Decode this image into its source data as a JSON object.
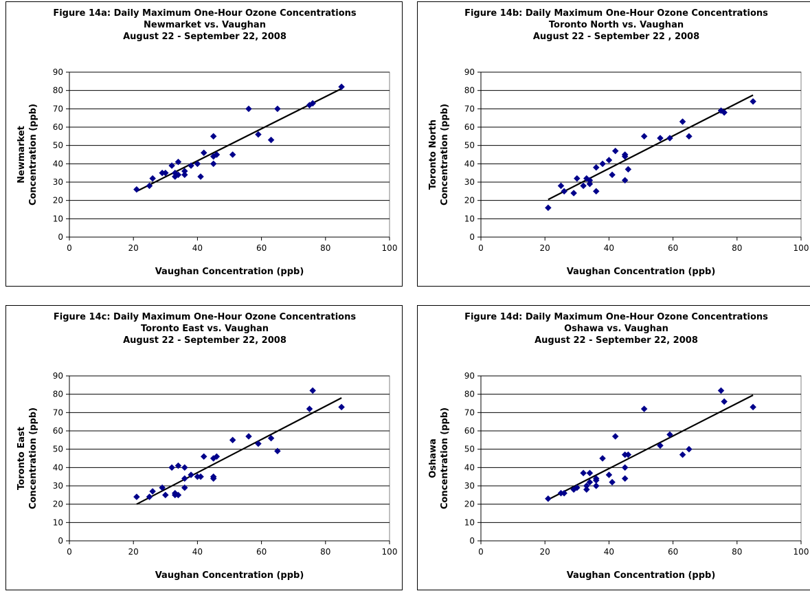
{
  "chart_data": [
    {
      "type": "scatter",
      "title": [
        "Figure 14a:  Daily Maximum One-Hour Ozone Concentrations",
        "Newmarket vs. Vaughan",
        "August 22 - September 22, 2008"
      ],
      "xlabel": "Vaughan Concentration (ppb)",
      "ylabel": [
        "Newmarket",
        "Concentration (ppb)"
      ],
      "xlim": [
        0,
        100
      ],
      "ylim": [
        0,
        90
      ],
      "xticks": [
        0,
        20,
        40,
        60,
        80,
        100
      ],
      "yticks": [
        0,
        10,
        20,
        30,
        40,
        50,
        60,
        70,
        80,
        90
      ],
      "grid": true,
      "marker_color": "#00008B",
      "trendline": {
        "from": [
          21,
          25
        ],
        "to": [
          85,
          81
        ]
      },
      "points": [
        [
          21,
          26
        ],
        [
          25,
          28
        ],
        [
          26,
          32
        ],
        [
          29,
          35
        ],
        [
          30,
          35
        ],
        [
          32,
          39
        ],
        [
          33,
          33
        ],
        [
          33,
          35
        ],
        [
          34,
          41
        ],
        [
          34,
          34
        ],
        [
          36,
          36
        ],
        [
          36,
          34
        ],
        [
          38,
          39
        ],
        [
          40,
          40
        ],
        [
          41,
          33
        ],
        [
          42,
          46
        ],
        [
          45,
          55
        ],
        [
          45,
          44
        ],
        [
          45,
          40
        ],
        [
          46,
          45
        ],
        [
          46,
          45
        ],
        [
          51,
          45
        ],
        [
          56,
          70
        ],
        [
          59,
          56
        ],
        [
          63,
          53
        ],
        [
          65,
          70
        ],
        [
          75,
          72
        ],
        [
          76,
          73
        ],
        [
          85,
          82
        ]
      ]
    },
    {
      "type": "scatter",
      "title": [
        "Figure 14b:  Daily Maximum One-Hour Ozone Concentrations",
        "Toronto North vs. Vaughan",
        "August 22 - September 22 , 2008"
      ],
      "xlabel": "Vaughan Concentration (ppb)",
      "ylabel": [
        "Toronto North",
        "Concentration (ppb)"
      ],
      "xlim": [
        0,
        100
      ],
      "ylim": [
        0,
        90
      ],
      "xticks": [
        0,
        20,
        40,
        60,
        80,
        100
      ],
      "yticks": [
        0,
        10,
        20,
        30,
        40,
        50,
        60,
        70,
        80,
        90
      ],
      "grid": true,
      "marker_color": "#00008B",
      "trendline": {
        "from": [
          21,
          20.5
        ],
        "to": [
          85,
          77.5
        ]
      },
      "points": [
        [
          21,
          16
        ],
        [
          25,
          28
        ],
        [
          26,
          25
        ],
        [
          29,
          24
        ],
        [
          30,
          32
        ],
        [
          32,
          28
        ],
        [
          33,
          32
        ],
        [
          34,
          29
        ],
        [
          34,
          31
        ],
        [
          36,
          38
        ],
        [
          36,
          25
        ],
        [
          38,
          40
        ],
        [
          40,
          42
        ],
        [
          41,
          34
        ],
        [
          42,
          47
        ],
        [
          45,
          44
        ],
        [
          45,
          45
        ],
        [
          45,
          31
        ],
        [
          46,
          37
        ],
        [
          51,
          55
        ],
        [
          56,
          54
        ],
        [
          59,
          54
        ],
        [
          63,
          63
        ],
        [
          65,
          55
        ],
        [
          75,
          69
        ],
        [
          76,
          68
        ],
        [
          85,
          74
        ]
      ]
    },
    {
      "type": "scatter",
      "title": [
        "Figure 14c:  Daily Maximum One-Hour Ozone Concentrations",
        "Toronto East vs. Vaughan",
        "August 22 - September 22, 2008"
      ],
      "xlabel": "Vaughan Concentration (ppb)",
      "ylabel": [
        "Toronto East",
        "Concentration (ppb)"
      ],
      "xlim": [
        0,
        100
      ],
      "ylim": [
        0,
        90
      ],
      "xticks": [
        0,
        20,
        40,
        60,
        80,
        100
      ],
      "yticks": [
        0,
        10,
        20,
        30,
        40,
        50,
        60,
        70,
        80,
        90
      ],
      "grid": true,
      "marker_color": "#00008B",
      "trendline": {
        "from": [
          21,
          20
        ],
        "to": [
          85,
          78
        ]
      },
      "points": [
        [
          21,
          24
        ],
        [
          25,
          24
        ],
        [
          26,
          27
        ],
        [
          29,
          29
        ],
        [
          30,
          25
        ],
        [
          32,
          40
        ],
        [
          33,
          26
        ],
        [
          33,
          25
        ],
        [
          34,
          41
        ],
        [
          34,
          25
        ],
        [
          36,
          40
        ],
        [
          36,
          34
        ],
        [
          36,
          29
        ],
        [
          38,
          36
        ],
        [
          40,
          35
        ],
        [
          41,
          35
        ],
        [
          42,
          46
        ],
        [
          45,
          45
        ],
        [
          45,
          35
        ],
        [
          45,
          34
        ],
        [
          46,
          46
        ],
        [
          51,
          55
        ],
        [
          56,
          57
        ],
        [
          59,
          53
        ],
        [
          63,
          56
        ],
        [
          65,
          49
        ],
        [
          75,
          72
        ],
        [
          76,
          82
        ],
        [
          85,
          73
        ]
      ]
    },
    {
      "type": "scatter",
      "title": [
        "Figure 14d:  Daily Maximum One-Hour Ozone Concentrations",
        "Oshawa vs. Vaughan",
        "August 22 - September 22, 2008"
      ],
      "xlabel": "Vaughan Concentration (ppb)",
      "ylabel": [
        "Oshawa",
        "Concentration (ppb)"
      ],
      "xlim": [
        0,
        100
      ],
      "ylim": [
        0,
        90
      ],
      "xticks": [
        0,
        20,
        40,
        60,
        80,
        100
      ],
      "yticks": [
        0,
        10,
        20,
        30,
        40,
        50,
        60,
        70,
        80,
        90
      ],
      "grid": true,
      "marker_color": "#00008B",
      "trendline": {
        "from": [
          21,
          22.5
        ],
        "to": [
          85,
          79.5
        ]
      },
      "points": [
        [
          21,
          23
        ],
        [
          25,
          26
        ],
        [
          26,
          26
        ],
        [
          29,
          28
        ],
        [
          30,
          29
        ],
        [
          32,
          37
        ],
        [
          33,
          28
        ],
        [
          33,
          30
        ],
        [
          34,
          37
        ],
        [
          34,
          32
        ],
        [
          36,
          34
        ],
        [
          36,
          30
        ],
        [
          36,
          33
        ],
        [
          38,
          45
        ],
        [
          40,
          36
        ],
        [
          41,
          32
        ],
        [
          42,
          57
        ],
        [
          45,
          47
        ],
        [
          45,
          40
        ],
        [
          45,
          34
        ],
        [
          46,
          47
        ],
        [
          51,
          72
        ],
        [
          56,
          52
        ],
        [
          59,
          58
        ],
        [
          63,
          47
        ],
        [
          65,
          50
        ],
        [
          75,
          82
        ],
        [
          76,
          76
        ],
        [
          85,
          73
        ]
      ]
    }
  ]
}
